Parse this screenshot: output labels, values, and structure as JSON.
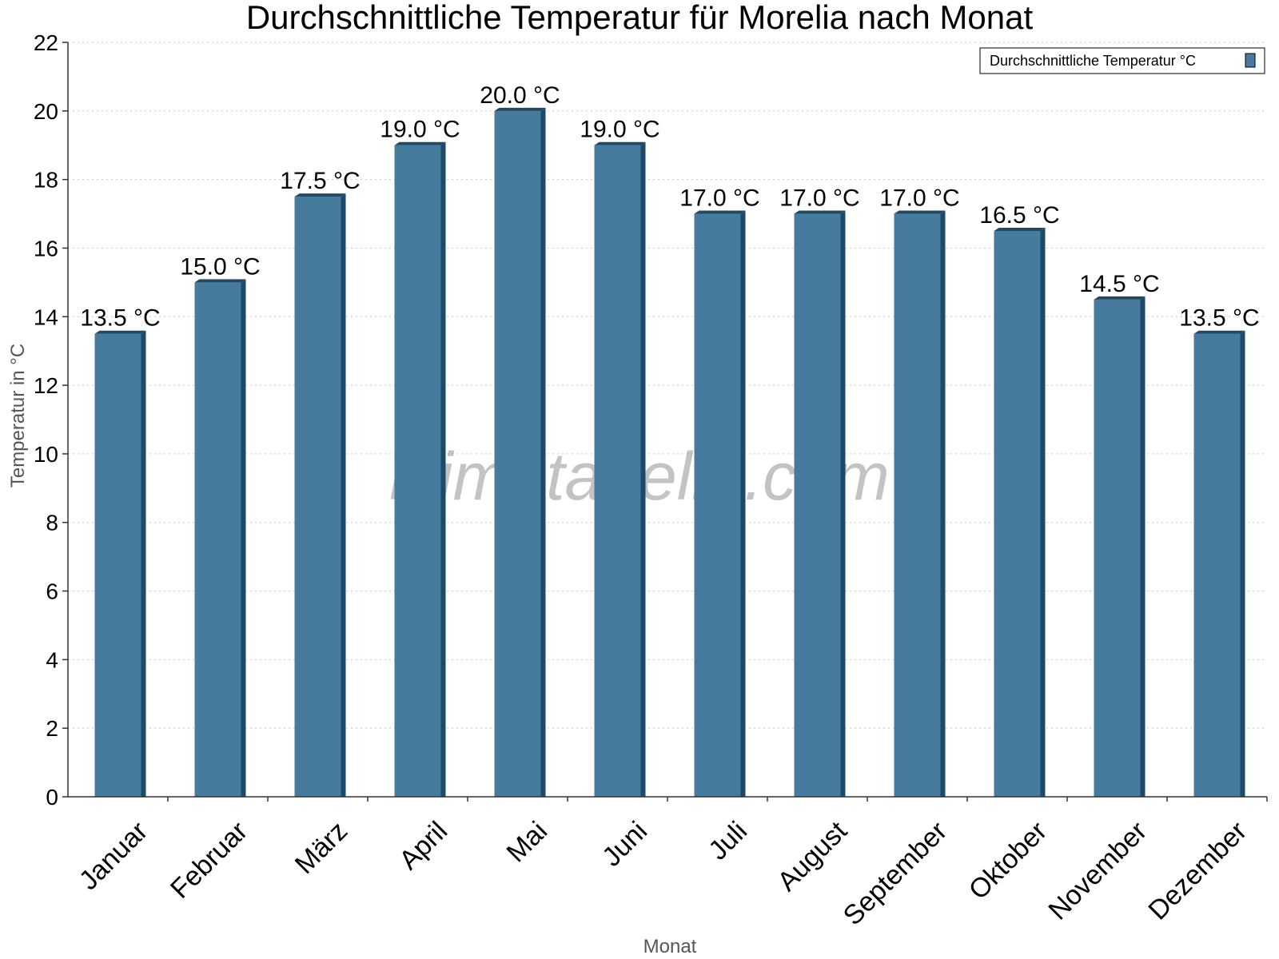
{
  "chart_data": {
    "type": "bar",
    "title": "Durchschnittliche Temperatur für Morelia nach Monat",
    "xlabel": "Monat",
    "ylabel": "Temperatur in °C",
    "categories": [
      "Januar",
      "Februar",
      "März",
      "April",
      "Mai",
      "Juni",
      "Juli",
      "August",
      "September",
      "Oktober",
      "November",
      "Dezember"
    ],
    "series": [
      {
        "name": "Durchschnittliche Temperatur °C",
        "values": [
          13.5,
          15.0,
          17.5,
          19.0,
          20.0,
          19.0,
          17.0,
          17.0,
          17.0,
          16.5,
          14.5,
          13.5
        ],
        "data_labels": [
          "13.5 °C",
          "15.0 °C",
          "17.5 °C",
          "19.0 °C",
          "20.0 °C",
          "19.0 °C",
          "17.0 °C",
          "17.0 °C",
          "17.0 °C",
          "16.5 °C",
          "14.5 °C",
          "13.5 °C"
        ]
      }
    ],
    "ylim": [
      0,
      22
    ],
    "yticks": [
      0,
      2,
      4,
      6,
      8,
      10,
      12,
      14,
      16,
      18,
      20,
      22
    ],
    "grid": true,
    "legend_position": "top-right",
    "watermark": "klimatabelle.com",
    "colors": {
      "bar": "#467b9d",
      "bar_side": "#1e4a69",
      "bar_top": "#1e4a69"
    }
  }
}
